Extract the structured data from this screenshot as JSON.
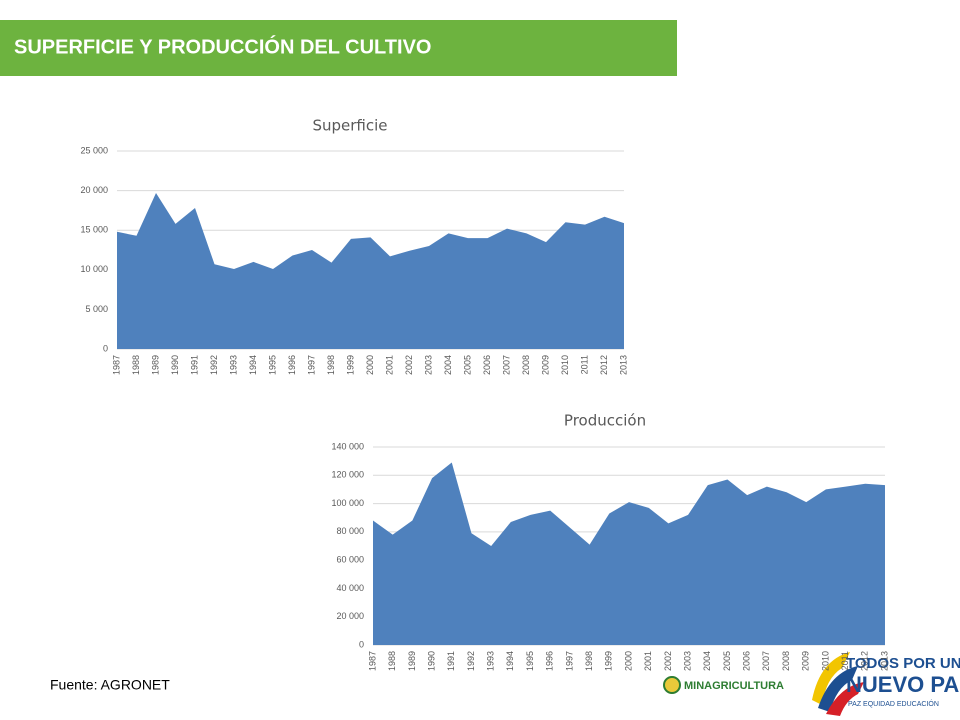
{
  "header": {
    "title": "SUPERFICIE Y PRODUCCIÓN DEL CULTIVO"
  },
  "footer": {
    "source": "Fuente: AGRONET"
  },
  "logos": {
    "ministry": "MINAGRICULTURA",
    "slogan_top": "TODOS POR UN",
    "slogan_main": "NUEVO PAÍS",
    "slogan_sub": "PAZ EQUIDAD EDUCACIÓN"
  },
  "chart_data": [
    {
      "type": "area",
      "title": "Superficie",
      "color": "#4f81bd",
      "grid": true,
      "categories": [
        "1987",
        "1988",
        "1989",
        "1990",
        "1991",
        "1992",
        "1993",
        "1994",
        "1995",
        "1996",
        "1997",
        "1998",
        "1999",
        "2000",
        "2001",
        "2002",
        "2003",
        "2004",
        "2005",
        "2006",
        "2007",
        "2008",
        "2009",
        "2010",
        "2011",
        "2012",
        "2013"
      ],
      "values": [
        14800,
        14300,
        19700,
        15800,
        17800,
        10700,
        10100,
        11000,
        10100,
        11800,
        12500,
        10900,
        13900,
        14100,
        11700,
        12400,
        13000,
        14600,
        14000,
        14000,
        15200,
        14600,
        13500,
        16000,
        15700,
        16700,
        15900
      ],
      "ylim": [
        0,
        25000
      ],
      "yticks": [
        0,
        {
          "value": 5000,
          "label": "5 000"
        },
        {
          "value": 10000,
          "label": "10 000"
        },
        {
          "value": 15000,
          "label": "15 000"
        },
        {
          "value": 20000,
          "label": "20 000"
        },
        {
          "value": 25000,
          "label": "25 000"
        }
      ]
    },
    {
      "type": "area",
      "title": "Producción",
      "color": "#4f81bd",
      "grid": true,
      "categories": [
        "1987",
        "1988",
        "1989",
        "1990",
        "1991",
        "1992",
        "1993",
        "1994",
        "1995",
        "1996",
        "1997",
        "1998",
        "1999",
        "2000",
        "2001",
        "2002",
        "2003",
        "2004",
        "2005",
        "2006",
        "2007",
        "2008",
        "2009",
        "2010",
        "2011",
        "2012",
        "2013"
      ],
      "values": [
        88000,
        78000,
        88000,
        118000,
        129000,
        79000,
        70000,
        87000,
        92000,
        95000,
        83000,
        71000,
        93000,
        101000,
        97000,
        86000,
        92000,
        113000,
        117000,
        106000,
        112000,
        108000,
        101000,
        110000,
        112000,
        114000,
        113000
      ],
      "ylim": [
        0,
        140000
      ],
      "yticks": [
        0,
        {
          "value": 20000,
          "label": "20 000"
        },
        {
          "value": 40000,
          "label": "40 000"
        },
        {
          "value": 60000,
          "label": "60 000"
        },
        {
          "value": 80000,
          "label": "80 000"
        },
        {
          "value": 100000,
          "label": "100 000"
        },
        {
          "value": 120000,
          "label": "120 000"
        },
        {
          "value": 140000,
          "label": "140 000"
        }
      ]
    }
  ]
}
